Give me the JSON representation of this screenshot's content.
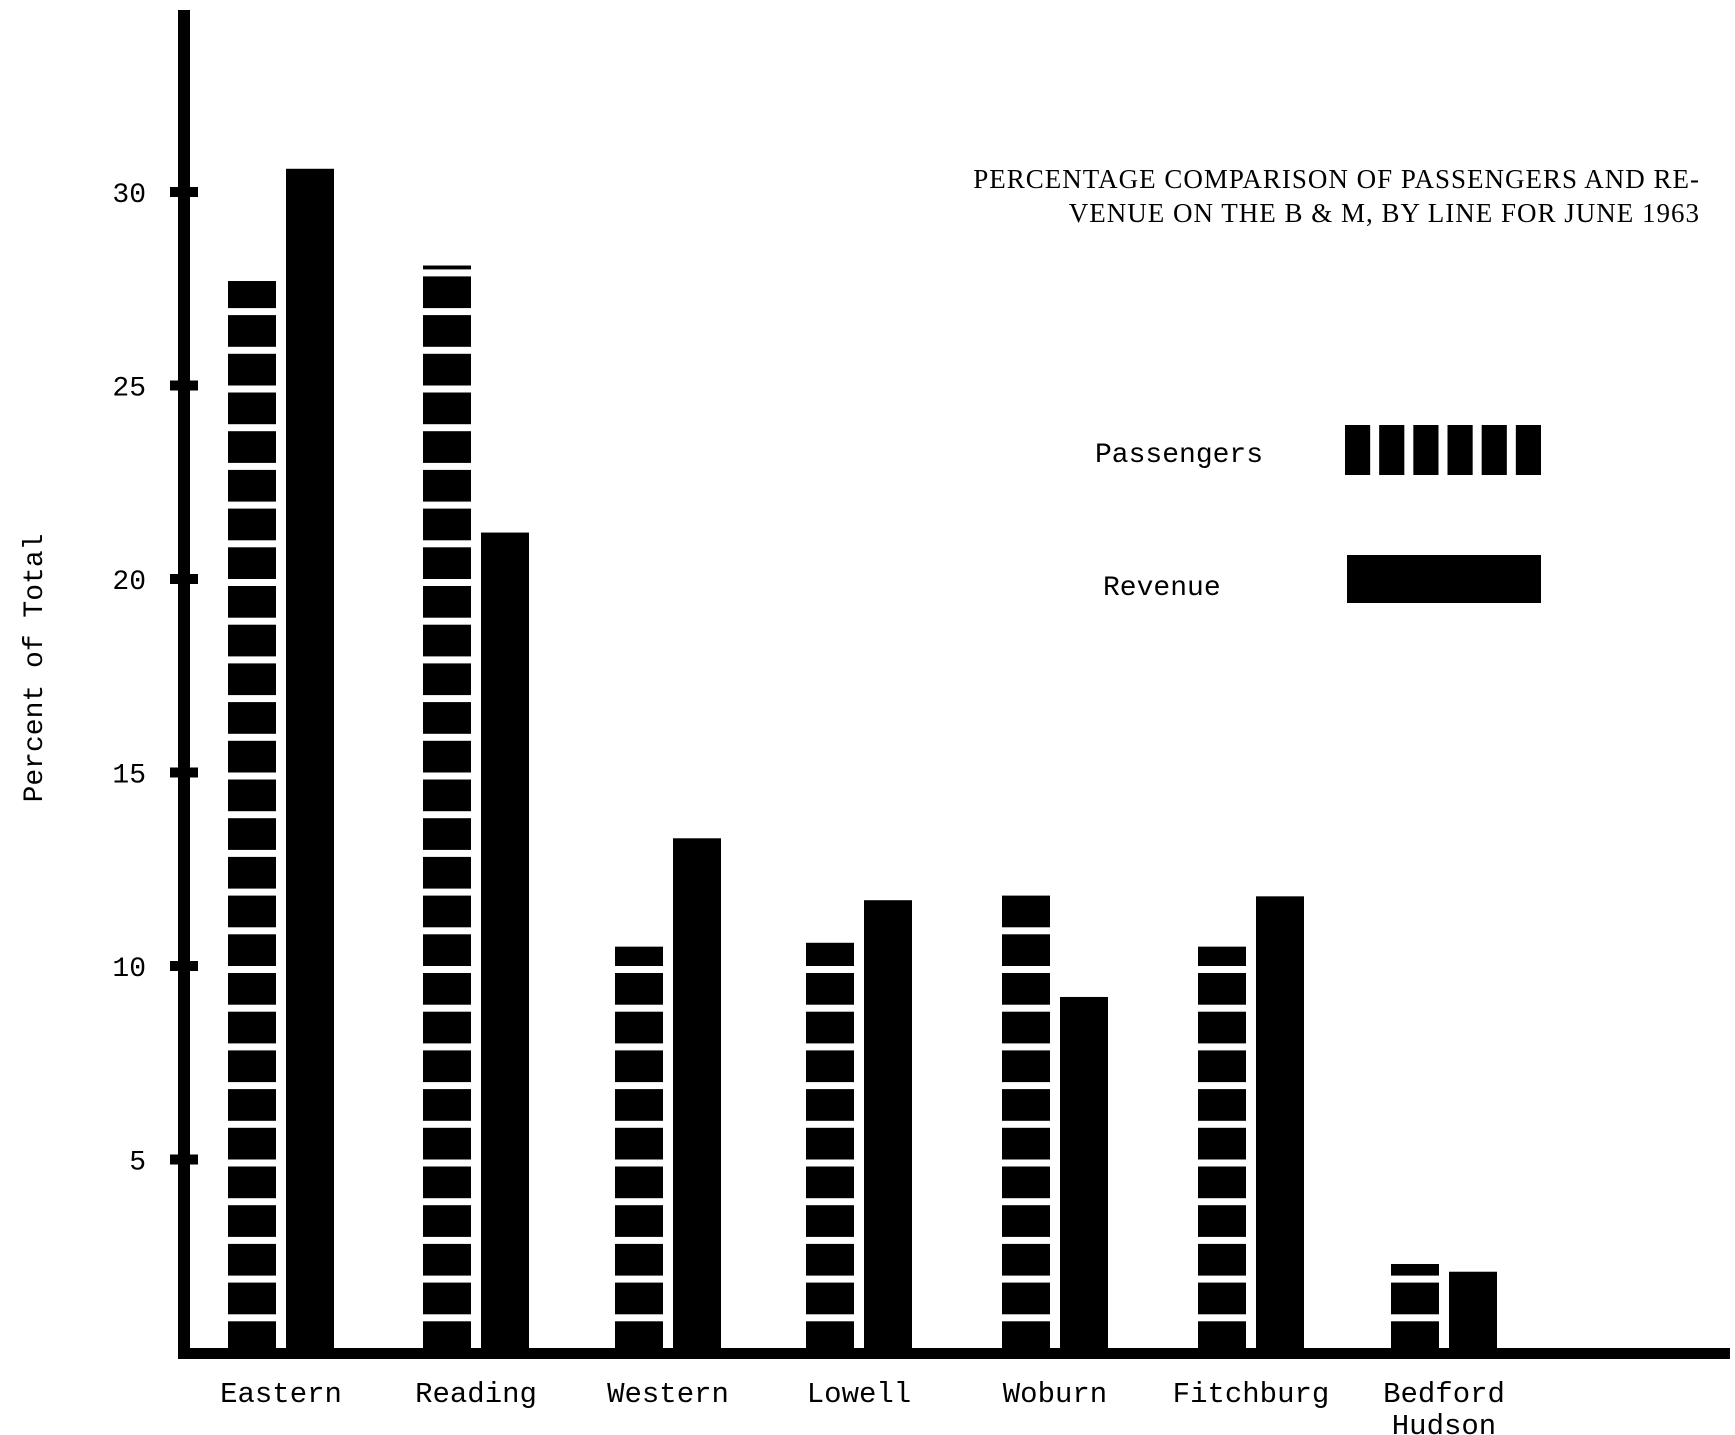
{
  "chart_data": {
    "type": "bar",
    "title_lines": [
      "PERCENTAGE COMPARISON OF PASSENGERS AND RE-",
      "VENUE ON THE B & M, BY LINE FOR JUNE  1963"
    ],
    "ylabel": "Percent of Total",
    "xlabel": "",
    "ylim": [
      0,
      35
    ],
    "yticks": [
      5,
      10,
      15,
      20,
      25,
      30
    ],
    "categories": [
      [
        "Eastern"
      ],
      [
        "Reading"
      ],
      [
        "Western"
      ],
      [
        "Lowell"
      ],
      [
        "Woburn"
      ],
      [
        "Fitchburg"
      ],
      [
        "Bedford",
        "Hudson"
      ]
    ],
    "series": [
      {
        "name": "Passengers",
        "pattern": "striped",
        "values": [
          27.7,
          28.1,
          10.5,
          10.6,
          11.9,
          10.5,
          2.3
        ]
      },
      {
        "name": "Revenue",
        "pattern": "solid",
        "values": [
          30.6,
          21.2,
          13.3,
          11.7,
          9.2,
          11.8,
          2.1
        ]
      }
    ],
    "legend_position": "upper-right",
    "grid": false,
    "colors": {
      "ink": "#000000",
      "background": "#ffffff"
    }
  }
}
